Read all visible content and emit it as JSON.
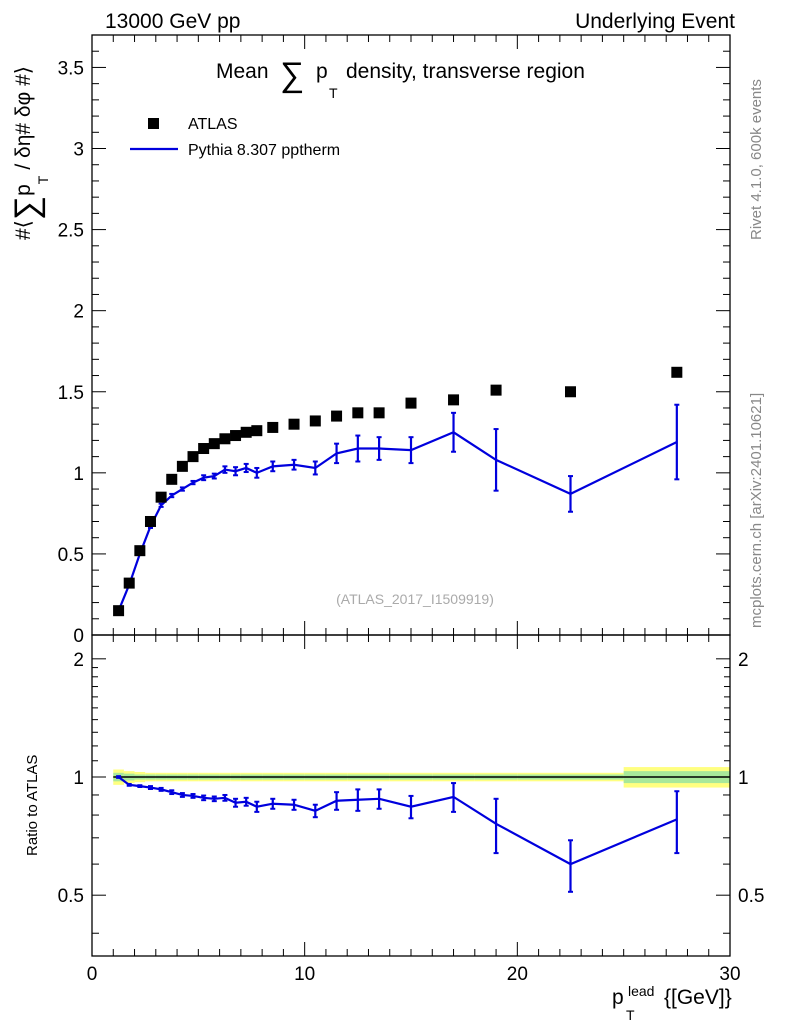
{
  "header": {
    "left": "13000 GeV pp",
    "right": "Underlying Event"
  },
  "side_labels": {
    "version": "Rivet 4.1.0,  600k events",
    "site": "mcplots.cern.ch [arXiv:2401.10621]"
  },
  "chart_data": [
    {
      "type": "scatter",
      "panel": "main",
      "title_parts": {
        "before": "Mean",
        "symbol": "∑",
        "p": "p",
        "sub": "T",
        "after": "density, transverse region"
      },
      "ylabel_parts": {
        "prefix": "#⟨",
        "symbol": "∑",
        "p": "p",
        "sub": "T",
        "suffix": "/ δη# δφ #⟩"
      },
      "watermark": "(ATLAS_2017_I1509919)",
      "xlim": [
        0,
        30
      ],
      "ylim": [
        0,
        3.7
      ],
      "x_ticks": [
        0,
        10,
        20,
        30
      ],
      "y_ticks": [
        0,
        0.5,
        1,
        1.5,
        2,
        2.5,
        3,
        3.5
      ],
      "y_tick_labels": [
        "0",
        "0.5",
        "1",
        "1.5",
        "2",
        "2.5",
        "3",
        "3.5"
      ],
      "legend": [
        {
          "label": "ATLAS",
          "marker": "square",
          "color": "#000000"
        },
        {
          "label": "Pythia 8.307 pptherm",
          "marker": "line",
          "color": "#0000dd"
        }
      ],
      "series": [
        {
          "name": "ATLAS",
          "color": "#000000",
          "x": [
            1.25,
            1.75,
            2.25,
            2.75,
            3.25,
            3.75,
            4.25,
            4.75,
            5.25,
            5.75,
            6.25,
            6.75,
            7.25,
            7.75,
            8.5,
            9.5,
            10.5,
            11.5,
            12.5,
            13.5,
            15.0,
            17.0,
            19.0,
            22.5,
            27.5
          ],
          "y": [
            0.15,
            0.32,
            0.52,
            0.7,
            0.85,
            0.96,
            1.04,
            1.1,
            1.15,
            1.18,
            1.21,
            1.23,
            1.25,
            1.26,
            1.28,
            1.3,
            1.32,
            1.35,
            1.37,
            1.37,
            1.43,
            1.45,
            1.51,
            1.5,
            1.62
          ]
        },
        {
          "name": "Pythia 8.307 pptherm",
          "color": "#0000dd",
          "x": [
            1.25,
            1.75,
            2.25,
            2.75,
            3.25,
            3.75,
            4.25,
            4.75,
            5.25,
            5.75,
            6.25,
            6.75,
            7.25,
            7.75,
            8.5,
            9.5,
            10.5,
            11.5,
            12.5,
            13.5,
            15.0,
            17.0,
            19.0,
            22.5,
            27.5
          ],
          "y": [
            0.15,
            0.31,
            0.5,
            0.67,
            0.8,
            0.86,
            0.9,
            0.94,
            0.97,
            0.98,
            1.02,
            1.01,
            1.03,
            1.0,
            1.04,
            1.05,
            1.03,
            1.12,
            1.15,
            1.15,
            1.14,
            1.25,
            1.08,
            0.87,
            1.19
          ],
          "err": [
            0.005,
            0.005,
            0.005,
            0.01,
            0.01,
            0.01,
            0.01,
            0.01,
            0.015,
            0.015,
            0.02,
            0.025,
            0.025,
            0.03,
            0.03,
            0.03,
            0.04,
            0.06,
            0.08,
            0.07,
            0.08,
            0.12,
            0.19,
            0.11,
            0.23
          ]
        }
      ]
    },
    {
      "type": "line",
      "panel": "ratio",
      "ylabel": "Ratio to ATLAS",
      "xlabel_parts": {
        "p": "p",
        "sup": "lead",
        "sub": "T",
        "unit": "{[GeV]}"
      },
      "xlim": [
        0,
        30
      ],
      "ylim": [
        0.35,
        2.3
      ],
      "x_ticks": [
        0,
        10,
        20,
        30
      ],
      "x_tick_labels": [
        "0",
        "10",
        "20",
        "30"
      ],
      "y_ticks": [
        0.5,
        1,
        2
      ],
      "y_tick_labels": [
        "0.5",
        "1",
        "2"
      ],
      "reference": 1.0,
      "band_edges": [
        1.0,
        1.5,
        2.0,
        2.5,
        3.0,
        3.5,
        4.0,
        4.5,
        5.0,
        5.5,
        6.0,
        6.5,
        7.0,
        7.5,
        8.0,
        9.0,
        10.0,
        11.0,
        12.0,
        13.0,
        14.0,
        16.0,
        18.0,
        20.0,
        25.0,
        30.0
      ],
      "band_inner": [
        0.025,
        0.02,
        0.015,
        0.015,
        0.015,
        0.015,
        0.015,
        0.015,
        0.015,
        0.015,
        0.015,
        0.015,
        0.015,
        0.015,
        0.015,
        0.015,
        0.015,
        0.015,
        0.015,
        0.015,
        0.015,
        0.015,
        0.015,
        0.015,
        0.035
      ],
      "band_outer": [
        0.045,
        0.035,
        0.03,
        0.025,
        0.025,
        0.025,
        0.025,
        0.025,
        0.025,
        0.025,
        0.025,
        0.025,
        0.025,
        0.025,
        0.025,
        0.025,
        0.025,
        0.025,
        0.025,
        0.025,
        0.025,
        0.025,
        0.025,
        0.025,
        0.06
      ],
      "series": [
        {
          "name": "Pythia 8.307 pptherm / ATLAS",
          "color": "#0000dd",
          "x": [
            1.25,
            1.75,
            2.25,
            2.75,
            3.25,
            3.75,
            4.25,
            4.75,
            5.25,
            5.75,
            6.25,
            6.75,
            7.25,
            7.75,
            8.5,
            9.5,
            10.5,
            11.5,
            12.5,
            13.5,
            15.0,
            17.0,
            19.0,
            22.5,
            27.5
          ],
          "y": [
            1.0,
            0.955,
            0.948,
            0.94,
            0.93,
            0.915,
            0.9,
            0.895,
            0.885,
            0.88,
            0.885,
            0.86,
            0.865,
            0.84,
            0.855,
            0.85,
            0.82,
            0.87,
            0.875,
            0.88,
            0.84,
            0.89,
            0.76,
            0.6,
            0.78
          ],
          "err": [
            0.005,
            0.005,
            0.005,
            0.008,
            0.008,
            0.01,
            0.01,
            0.01,
            0.012,
            0.012,
            0.015,
            0.02,
            0.02,
            0.025,
            0.025,
            0.025,
            0.03,
            0.045,
            0.055,
            0.05,
            0.055,
            0.075,
            0.12,
            0.09,
            0.14
          ]
        }
      ]
    }
  ]
}
